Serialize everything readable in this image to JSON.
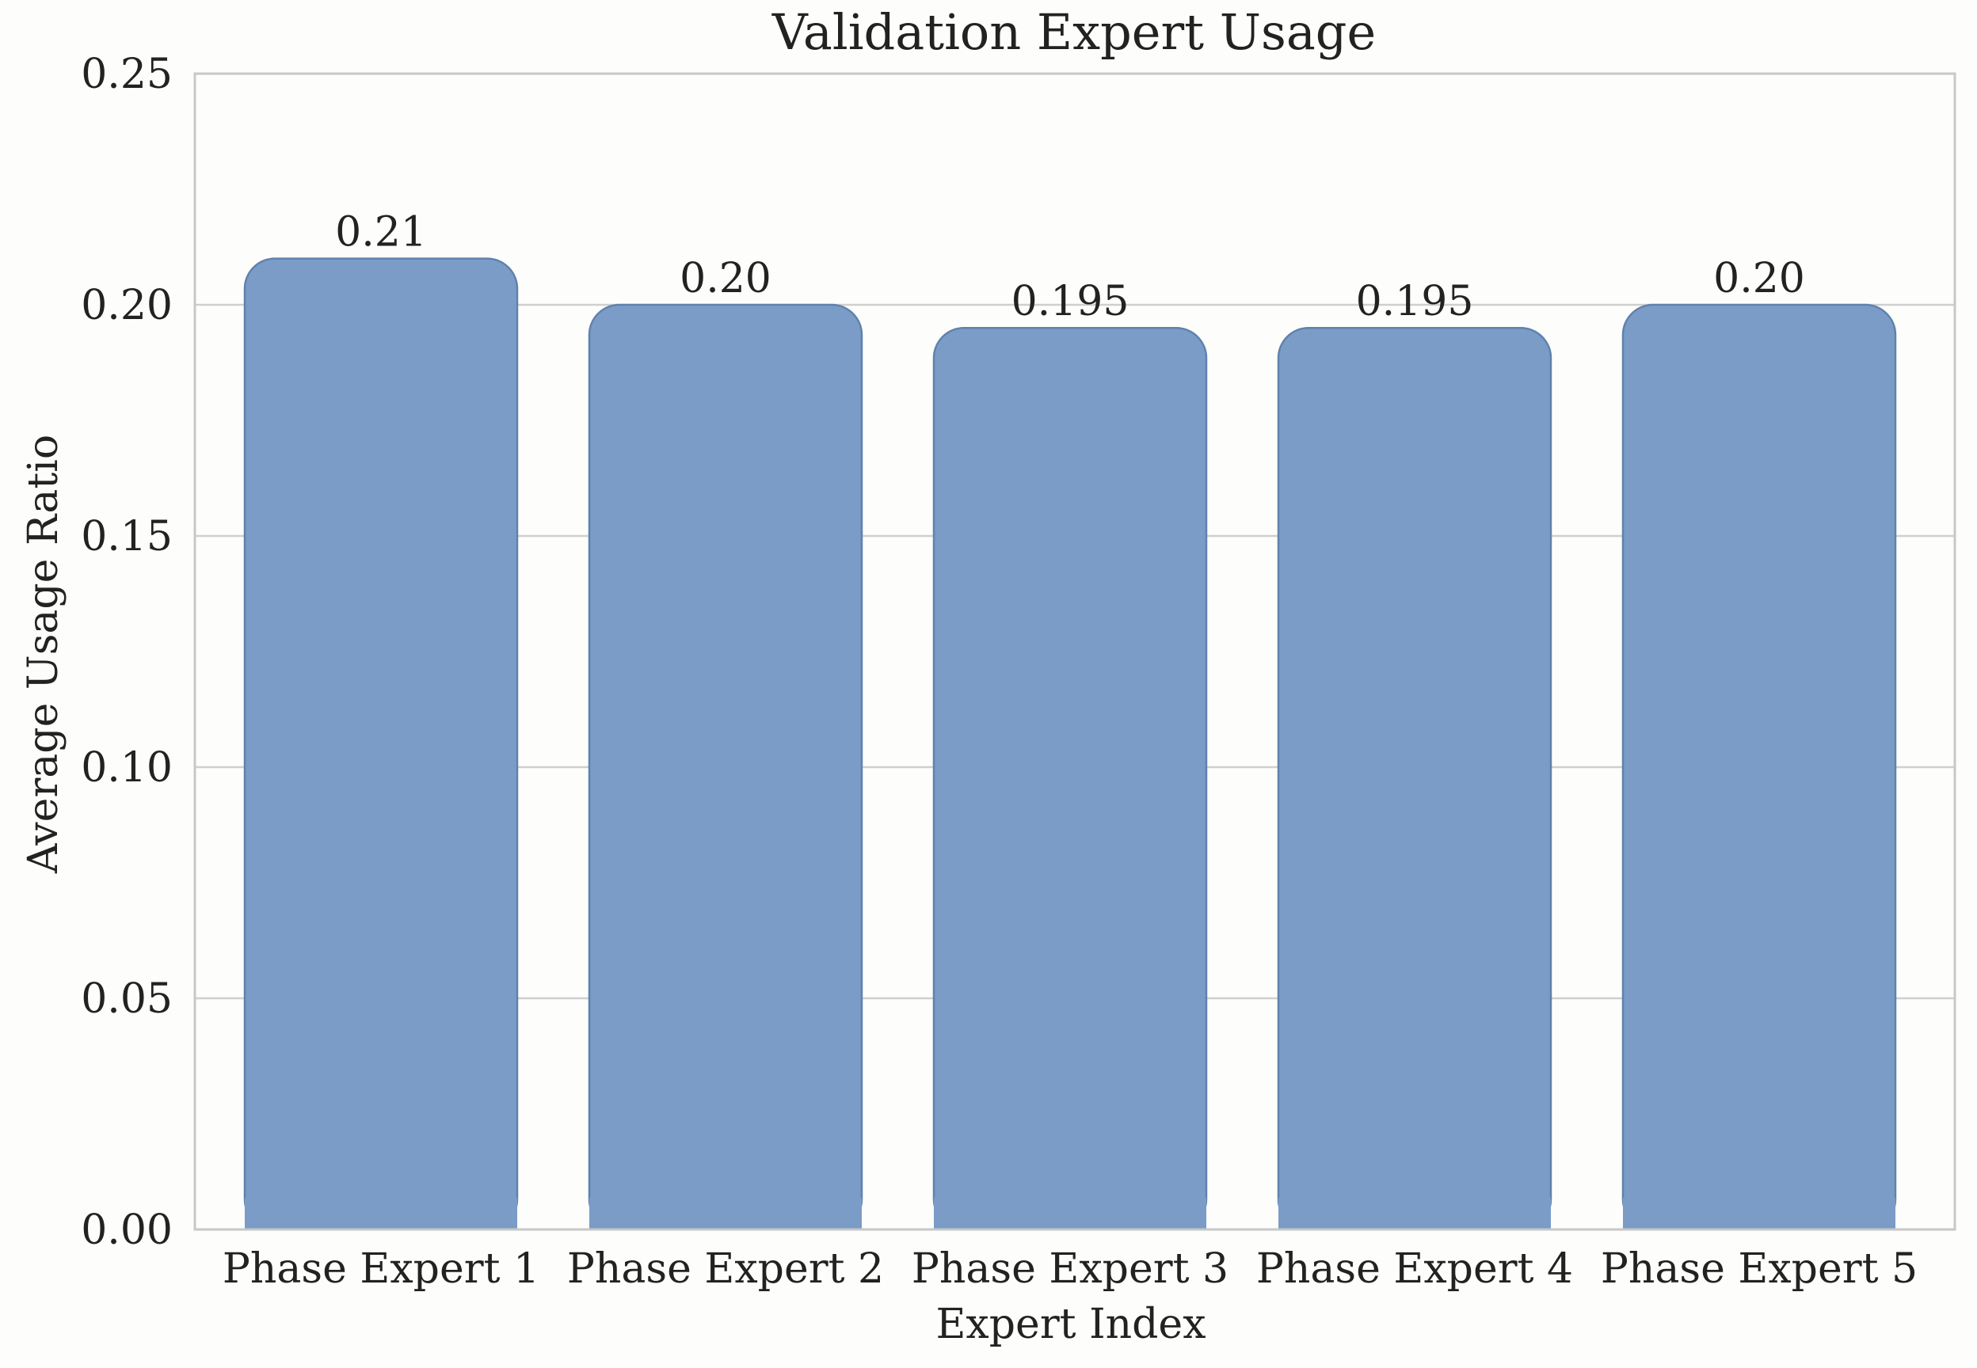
{
  "chart_data": {
    "type": "bar",
    "title": "Validation Expert Usage",
    "xlabel": "Expert Index",
    "ylabel": "Average Usage Ratio",
    "categories": [
      "Phase Expert 1",
      "Phase Expert 2",
      "Phase Expert 3",
      "Phase Expert 4",
      "Phase Expert 5"
    ],
    "values": [
      0.21,
      0.2,
      0.195,
      0.195,
      0.2
    ],
    "value_labels": [
      "0.21",
      "0.20",
      "0.195",
      "0.195",
      "0.20"
    ],
    "ylim": [
      0,
      0.25
    ],
    "yticks": [
      0.0,
      0.05,
      0.1,
      0.15,
      0.2,
      0.25
    ],
    "ytick_labels": [
      "0.00",
      "0.05",
      "0.10",
      "0.15",
      "0.20",
      "0.25"
    ],
    "grid": true,
    "bar_color": "#7a9cc6",
    "bar_edge_color": "#5f82ad"
  }
}
